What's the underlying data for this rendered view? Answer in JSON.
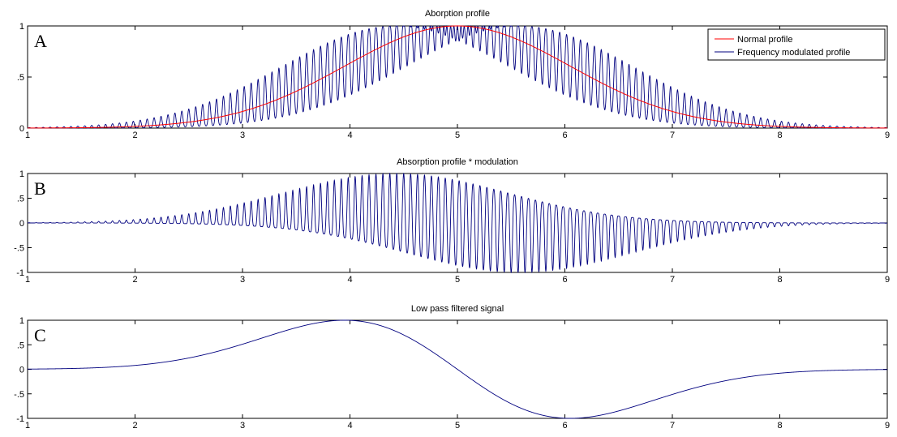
{
  "chart_data": [
    {
      "type": "line",
      "panel_label": "A",
      "title": "Aborption profile",
      "xlabel": "",
      "ylabel": "",
      "xlim": [
        1,
        9
      ],
      "ylim": [
        0,
        1
      ],
      "xticks": [
        1,
        2,
        3,
        4,
        5,
        6,
        7,
        8,
        9
      ],
      "yticks": [
        0,
        0.5,
        1
      ],
      "grid": false,
      "legend_position": "top-right",
      "series": [
        {
          "name": "Normal profile",
          "color": "#ff0000",
          "kind": "gaussian",
          "center": 5,
          "sigma": 1.05,
          "amplitude": 1
        },
        {
          "name": "Frequency modulated profile",
          "color": "#00007f",
          "kind": "frequency_modulated_gaussian",
          "center": 5,
          "sigma": 1.05,
          "amplitude": 1,
          "modulation_cycles": 124,
          "modulation_depth": 1.1
        }
      ]
    },
    {
      "type": "line",
      "panel_label": "B",
      "title": "Absorption profile * modulation",
      "xlabel": "",
      "ylabel": "",
      "xlim": [
        1,
        9
      ],
      "ylim": [
        -1,
        1
      ],
      "xticks": [
        1,
        2,
        3,
        4,
        5,
        6,
        7,
        8,
        9
      ],
      "yticks": [
        -1,
        -0.5,
        0,
        0.5,
        1
      ],
      "grid": false,
      "series": [
        {
          "name": "",
          "color": "#00007f",
          "kind": "modulated_product",
          "center": 5,
          "sigma": 1.05,
          "amplitude": 1,
          "modulation_cycles": 124,
          "modulation_depth": 1.1
        }
      ]
    },
    {
      "type": "line",
      "panel_label": "C",
      "title": "Low pass filtered signal",
      "xlabel": "",
      "ylabel": "",
      "xlim": [
        1,
        9
      ],
      "ylim": [
        -1,
        1
      ],
      "xticks": [
        1,
        2,
        3,
        4,
        5,
        6,
        7,
        8,
        9
      ],
      "yticks": [
        -1,
        -0.5,
        0,
        0.5,
        1
      ],
      "grid": false,
      "series": [
        {
          "name": "",
          "color": "#00007f",
          "kind": "gaussian_derivative",
          "center": 5,
          "sigma": 1.05,
          "amplitude": 1
        }
      ]
    }
  ]
}
